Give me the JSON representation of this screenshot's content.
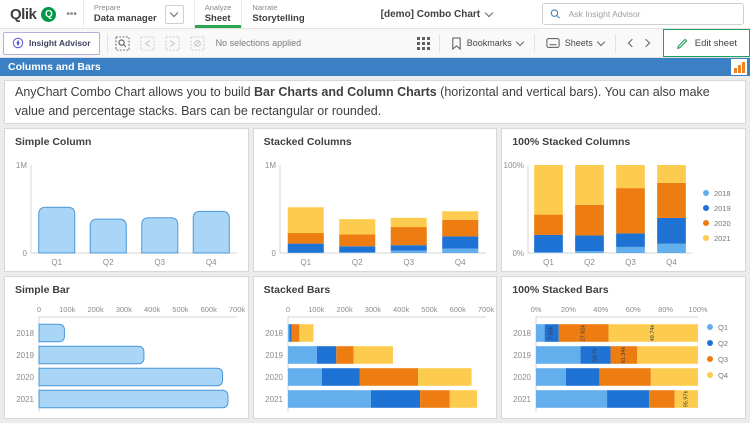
{
  "topnav": {
    "logo_text": "Qlik",
    "logo_q": "Q",
    "menu_ellipsis": "•••",
    "nav": [
      {
        "label": "Prepare",
        "value": "Data manager"
      },
      {
        "label": "Analyze",
        "value": "Sheet"
      },
      {
        "label": "Narrate",
        "value": "Storytelling"
      }
    ],
    "app_title": "[demo] Combo Chart",
    "search_placeholder": "Ask Insight Advisor"
  },
  "toolbar": {
    "insight_advisor": "Insight Advisor",
    "selections_status": "No selections applied",
    "bookmarks": "Bookmarks",
    "sheets": "Sheets",
    "edit_sheet": "Edit sheet"
  },
  "sheet_header": {
    "title": "Columns and Bars"
  },
  "description": {
    "part1": "AnyChart Combo Chart allows you to build ",
    "bold": "Bar Charts and Column Charts",
    "part2": " (horizontal and vertical bars). You can also make value and percentage stacks. Bars can be rectangular or rounded."
  },
  "colors": {
    "header_blue": "#3b80c5",
    "qlik_green": "#009845",
    "active_tab_green": "#2aa84f",
    "series_lightblue": "#63aeec",
    "series_blue": "#1d72d4",
    "series_orange": "#ee7d11",
    "series_yellow": "#fdcc4f",
    "simple_fill": "#a9d6f7",
    "simple_stroke": "#4a98d9"
  },
  "chart_data": [
    {
      "type": "bar",
      "orientation": "vertical",
      "stacked": false,
      "title": "Simple Column",
      "categories": [
        "Q1",
        "Q2",
        "Q3",
        "Q4"
      ],
      "values": [
        520000,
        385000,
        400000,
        473000
      ],
      "value_max": 1000000,
      "y_top_label": "1M",
      "y_bottom_label": "0",
      "bar_color": "#a9d6f7",
      "bar_stroke": "#4a98d9"
    },
    {
      "type": "bar",
      "orientation": "vertical",
      "stacked": true,
      "title": "Stacked Columns",
      "categories": [
        "Q1",
        "Q2",
        "Q3",
        "Q4"
      ],
      "series": [
        {
          "name": "2018",
          "color": "#63aeec",
          "values": [
            4800,
            7860,
            27610,
            49740
          ]
        },
        {
          "name": "2019",
          "color": "#1d72d4",
          "values": [
            102000,
            68700,
            61340,
            139000
          ]
        },
        {
          "name": "2020",
          "color": "#ee7d11",
          "values": [
            120000,
            134000,
            206000,
            189000
          ]
        },
        {
          "name": "2021",
          "color": "#fdcc4f",
          "values": [
            293000,
            174000,
            105000,
            95970
          ]
        }
      ],
      "value_max": 1000000,
      "y_top_label": "1M",
      "y_bottom_label": "0"
    },
    {
      "type": "bar",
      "orientation": "vertical",
      "stacked": true,
      "percent": true,
      "title": "100% Stacked Columns",
      "categories": [
        "Q1",
        "Q2",
        "Q3",
        "Q4"
      ],
      "series": [
        {
          "name": "2018",
          "color": "#63aeec",
          "values": [
            4800,
            7860,
            27610,
            49740
          ]
        },
        {
          "name": "2019",
          "color": "#1d72d4",
          "values": [
            102000,
            68700,
            61340,
            139000
          ]
        },
        {
          "name": "2020",
          "color": "#ee7d11",
          "values": [
            120000,
            134000,
            206000,
            189000
          ]
        },
        {
          "name": "2021",
          "color": "#fdcc4f",
          "values": [
            293000,
            174000,
            105000,
            95970
          ]
        }
      ],
      "y_top_label": "100%",
      "y_bottom_label": "0%",
      "legend": true,
      "legend_position": "right"
    },
    {
      "type": "bar",
      "orientation": "horizontal",
      "stacked": false,
      "title": "Simple Bar",
      "categories": [
        "2018",
        "2019",
        "2020",
        "2021"
      ],
      "values": [
        90000,
        371000,
        649000,
        668000
      ],
      "value_max": 700000,
      "xtick_labels": [
        "0",
        "100k",
        "200k",
        "300k",
        "400k",
        "500k",
        "600k",
        "700k"
      ],
      "bar_color": "#a9d6f7",
      "bar_stroke": "#4a98d9"
    },
    {
      "type": "bar",
      "orientation": "horizontal",
      "stacked": true,
      "title": "Stacked Bars",
      "categories": [
        "2018",
        "2019",
        "2020",
        "2021"
      ],
      "series": [
        {
          "name": "Q1",
          "color": "#63aeec",
          "values": [
            4800,
            102000,
            120000,
            293000
          ]
        },
        {
          "name": "Q2",
          "color": "#1d72d4",
          "values": [
            7860,
            68700,
            134000,
            174000
          ]
        },
        {
          "name": "Q3",
          "color": "#ee7d11",
          "values": [
            27610,
            61340,
            206000,
            105000
          ]
        },
        {
          "name": "Q4",
          "color": "#fdcc4f",
          "values": [
            49740,
            139000,
            189000,
            95970
          ]
        }
      ],
      "value_max": 700000,
      "xtick_labels": [
        "0",
        "100k",
        "200k",
        "300k",
        "400k",
        "500k",
        "600k",
        "700k"
      ]
    },
    {
      "type": "bar",
      "orientation": "horizontal",
      "stacked": true,
      "percent": true,
      "title": "100% Stacked Bars",
      "categories": [
        "2018",
        "2019",
        "2020",
        "2021"
      ],
      "series": [
        {
          "name": "Q1",
          "color": "#63aeec",
          "values": [
            4800,
            102000,
            120000,
            293000
          ]
        },
        {
          "name": "Q2",
          "color": "#1d72d4",
          "values": [
            7860,
            68700,
            134000,
            174000
          ]
        },
        {
          "name": "Q3",
          "color": "#ee7d11",
          "values": [
            27610,
            61340,
            206000,
            105000
          ]
        },
        {
          "name": "Q4",
          "color": "#fdcc4f",
          "values": [
            49740,
            139000,
            189000,
            95970
          ]
        }
      ],
      "xtick_labels": [
        "0%",
        "20%",
        "40%",
        "60%",
        "80%",
        "100%"
      ],
      "legend": true,
      "legend_position": "right",
      "segment_labels": [
        {
          "row": 0,
          "series": 1,
          "text": "7.86k"
        },
        {
          "row": 0,
          "series": 2,
          "text": "27.61k"
        },
        {
          "row": 0,
          "series": 3,
          "text": "49.74k"
        },
        {
          "row": 1,
          "series": 1,
          "text": "68.7k"
        },
        {
          "row": 1,
          "series": 2,
          "text": "61.34k"
        },
        {
          "row": 3,
          "series": 3,
          "text": "95.97k"
        }
      ]
    }
  ]
}
